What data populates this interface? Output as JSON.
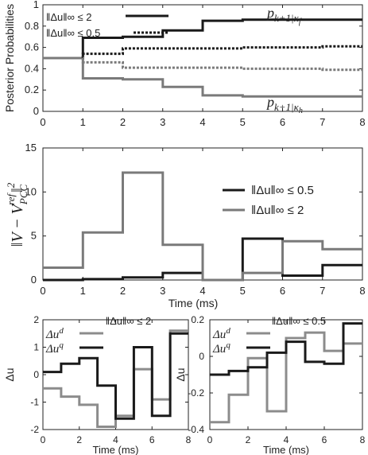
{
  "chart_data": [
    {
      "type": "line",
      "step": true,
      "ylabel": "Posterior Probabilities",
      "xlabel": "",
      "xlim": [
        0,
        8
      ],
      "ylim": [
        0,
        1
      ],
      "x_ticks": [
        "0",
        "1",
        "2",
        "3",
        "4",
        "5",
        "6",
        "7",
        "8"
      ],
      "y_ticks": [
        "0",
        "0.2",
        "0.4",
        "0.6",
        "0.8",
        "1"
      ],
      "grid": false,
      "legend": {
        "position": "top-left",
        "entries": [
          {
            "label": "‖Δu‖∞ ≤ 2",
            "style": "solid"
          },
          {
            "label": "‖Δu‖∞ ≤ 0.5",
            "style": "dotted"
          }
        ]
      },
      "annotations": [
        {
          "text": "p",
          "sub": "k+1|κ",
          "subsub": "f",
          "near_x": 6.2,
          "near_y": 0.93
        },
        {
          "text": "p",
          "sub": "k+1|κ",
          "subsub": "h",
          "near_x": 6.2,
          "near_y": 0.06
        }
      ],
      "series": [
        {
          "style": "solid",
          "color": "#1a1a1a",
          "x": [
            0,
            1,
            2,
            3,
            4,
            5,
            6,
            7,
            8
          ],
          "y": [
            0.5,
            0.69,
            0.7,
            0.76,
            0.85,
            0.86,
            0.86,
            0.86,
            0.88
          ]
        },
        {
          "style": "solid",
          "color": "#7a7a7a",
          "x": [
            0,
            1,
            2,
            3,
            4,
            5,
            6,
            7,
            8
          ],
          "y": [
            0.5,
            0.31,
            0.3,
            0.23,
            0.15,
            0.14,
            0.14,
            0.14,
            0.13
          ]
        },
        {
          "style": "dotted",
          "color": "#1a1a1a",
          "x": [
            0,
            1,
            2,
            3,
            4,
            5,
            6,
            7,
            8
          ],
          "y": [
            0.5,
            0.54,
            0.59,
            0.59,
            0.59,
            0.6,
            0.6,
            0.61,
            0.65
          ]
        },
        {
          "style": "dotted",
          "color": "#7a7a7a",
          "x": [
            0,
            1,
            2,
            3,
            4,
            5,
            6,
            7,
            8
          ],
          "y": [
            0.5,
            0.46,
            0.41,
            0.41,
            0.41,
            0.4,
            0.4,
            0.39,
            0.35
          ]
        }
      ]
    },
    {
      "type": "line",
      "step": true,
      "ylabel": "‖V − V_PCC^ref‖²",
      "xlabel": "Time (ms)",
      "xlim": [
        0,
        8
      ],
      "ylim": [
        0,
        15
      ],
      "x_ticks": [
        "0",
        "1",
        "2",
        "3",
        "4",
        "5",
        "6",
        "7",
        "8"
      ],
      "y_ticks": [
        "0",
        "5",
        "10",
        "15"
      ],
      "grid": false,
      "legend": {
        "position": "top-right",
        "entries": [
          {
            "label": "‖Δu‖∞ ≤ 0.5",
            "color": "#1a1a1a"
          },
          {
            "label": "‖Δu‖∞ ≤ 2",
            "color": "#7a7a7a"
          }
        ]
      },
      "series": [
        {
          "name": "‖Δu‖∞ ≤ 0.5",
          "color": "#1a1a1a",
          "x": [
            0,
            1,
            2,
            3,
            4,
            5,
            6,
            7,
            8
          ],
          "y": [
            0.0,
            0.1,
            0.3,
            0.8,
            0.0,
            4.7,
            0.5,
            1.7,
            1.7
          ]
        },
        {
          "name": "‖Δu‖∞ ≤ 2",
          "color": "#7a7a7a",
          "x": [
            0,
            1,
            2,
            3,
            4,
            5,
            6,
            7,
            8
          ],
          "y": [
            1.4,
            5.4,
            12.2,
            4.0,
            0.0,
            0.8,
            4.4,
            3.5,
            3.5
          ]
        }
      ]
    },
    {
      "type": "line",
      "step": true,
      "title": "‖Δu‖∞ ≤ 2",
      "ylabel": "Δu",
      "xlabel": "Time (ms)",
      "xlim": [
        0,
        8
      ],
      "ylim": [
        -2,
        2
      ],
      "x_ticks": [
        "0",
        "2",
        "4",
        "6",
        "8"
      ],
      "y_ticks": [
        "-2",
        "-1",
        "0",
        "1",
        "2"
      ],
      "grid": false,
      "legend": {
        "position": "top-left",
        "entries": [
          {
            "label": "Δu^d",
            "color": "#8c8c8c"
          },
          {
            "label": "Δu^q",
            "color": "#1a1a1a"
          }
        ]
      },
      "series": [
        {
          "name": "Δu^d",
          "color": "#8c8c8c",
          "x": [
            0,
            1,
            2,
            3,
            4,
            5,
            6,
            7,
            8
          ],
          "y": [
            -0.5,
            -0.8,
            -1.1,
            -1.9,
            -1.5,
            0.2,
            -0.9,
            1.6,
            1.7
          ]
        },
        {
          "name": "Δu^q",
          "color": "#1a1a1a",
          "x": [
            0,
            1,
            2,
            3,
            4,
            5,
            6,
            7,
            8
          ],
          "y": [
            0.1,
            0.4,
            0.6,
            -0.4,
            -1.6,
            1.0,
            -1.5,
            1.5,
            -1.3
          ]
        }
      ]
    },
    {
      "type": "line",
      "step": true,
      "title": "‖Δu‖∞ ≤ 0.5",
      "ylabel": "Δu",
      "xlabel": "Time (ms)",
      "xlim": [
        0,
        8
      ],
      "ylim": [
        -0.4,
        0.2
      ],
      "x_ticks": [
        "0",
        "2",
        "4",
        "6",
        "8"
      ],
      "y_ticks": [
        "-0.4",
        "-0.2",
        "0",
        "0.2"
      ],
      "grid": false,
      "legend": {
        "position": "top-left",
        "entries": [
          {
            "label": "Δu^d",
            "color": "#8c8c8c"
          },
          {
            "label": "Δu^q",
            "color": "#1a1a1a"
          }
        ]
      },
      "series": [
        {
          "name": "Δu^d",
          "color": "#8c8c8c",
          "x": [
            0,
            1,
            2,
            3,
            4,
            5,
            6,
            7,
            8
          ],
          "y": [
            -0.36,
            -0.21,
            -0.01,
            -0.3,
            0.1,
            0.13,
            0.03,
            0.07,
            0.07
          ]
        },
        {
          "name": "Δu^q",
          "color": "#1a1a1a",
          "x": [
            0,
            1,
            2,
            3,
            4,
            5,
            6,
            7,
            8
          ],
          "y": [
            -0.1,
            -0.08,
            -0.06,
            0.02,
            0.08,
            -0.03,
            -0.04,
            0.18,
            0.05
          ]
        }
      ]
    }
  ]
}
